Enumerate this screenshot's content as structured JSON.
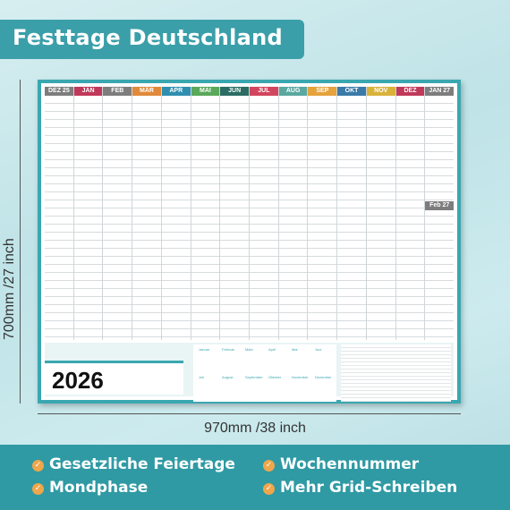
{
  "title": "Festtage Deutschland",
  "year": "2026",
  "dimensions": {
    "height_label": "700mm /27 inch",
    "width_label": "970mm /38 inch"
  },
  "months": [
    {
      "label": "DEZ 25",
      "color": "#7d7d7d"
    },
    {
      "label": "JAN",
      "color": "#c0395a"
    },
    {
      "label": "FEB",
      "color": "#7d7d7d"
    },
    {
      "label": "MÄR",
      "color": "#e0893a"
    },
    {
      "label": "APR",
      "color": "#2f8fb0"
    },
    {
      "label": "MAI",
      "color": "#5aa85a"
    },
    {
      "label": "JUN",
      "color": "#2b6d64"
    },
    {
      "label": "JUL",
      "color": "#d2455e"
    },
    {
      "label": "AUG",
      "color": "#5aa8a0"
    },
    {
      "label": "SEP",
      "color": "#e6a23c"
    },
    {
      "label": "OKT",
      "color": "#3a7aa9"
    },
    {
      "label": "NOV",
      "color": "#d9b23a"
    },
    {
      "label": "DEZ",
      "color": "#c0395a"
    },
    {
      "label": "JAN 27",
      "color": "#7d7d7d"
    }
  ],
  "extra_month": "Feb 27",
  "features": [
    {
      "label": "Gesetzliche Feiertage"
    },
    {
      "label": "Wochennummer"
    },
    {
      "label": "Mondphase"
    },
    {
      "label": "Mehr Grid-Schreiben"
    }
  ],
  "mini_calendar_months": [
    "Januar",
    "Februar",
    "März",
    "April",
    "Mai",
    "Juni",
    "Juli",
    "August",
    "September",
    "Oktober",
    "November",
    "Dezember"
  ]
}
